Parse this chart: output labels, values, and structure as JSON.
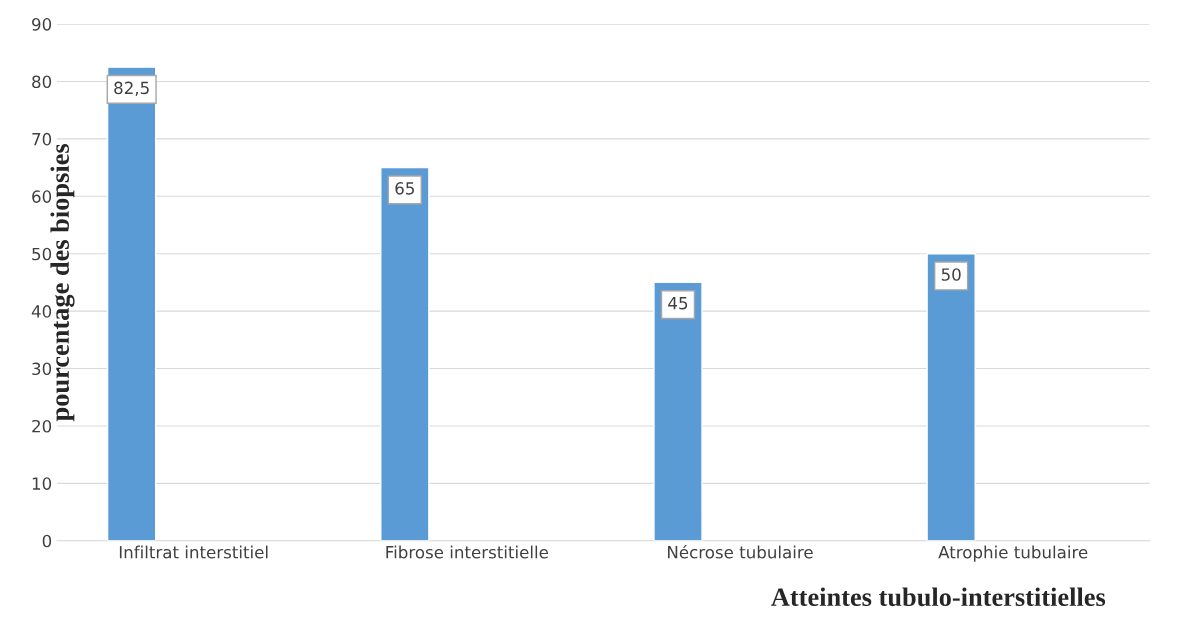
{
  "chart_data": {
    "type": "bar",
    "xlabel": "Atteintes tubulo-interstitielles",
    "ylabel": "pourcentage des biopsies",
    "categories": [
      "Infiltrat interstitiel",
      "Fibrose interstitielle",
      "Nécrose tubulaire",
      "Atrophie tubulaire"
    ],
    "values": [
      82.5,
      65,
      45,
      50
    ],
    "color": "#5b9bd5",
    "value_labels": [
      "82,5",
      "65",
      "45",
      "50"
    ],
    "ylim": [
      0,
      90
    ],
    "yticks": [
      0,
      10,
      20,
      30,
      40,
      50,
      60,
      70,
      80,
      90
    ],
    "grid": "y"
  }
}
